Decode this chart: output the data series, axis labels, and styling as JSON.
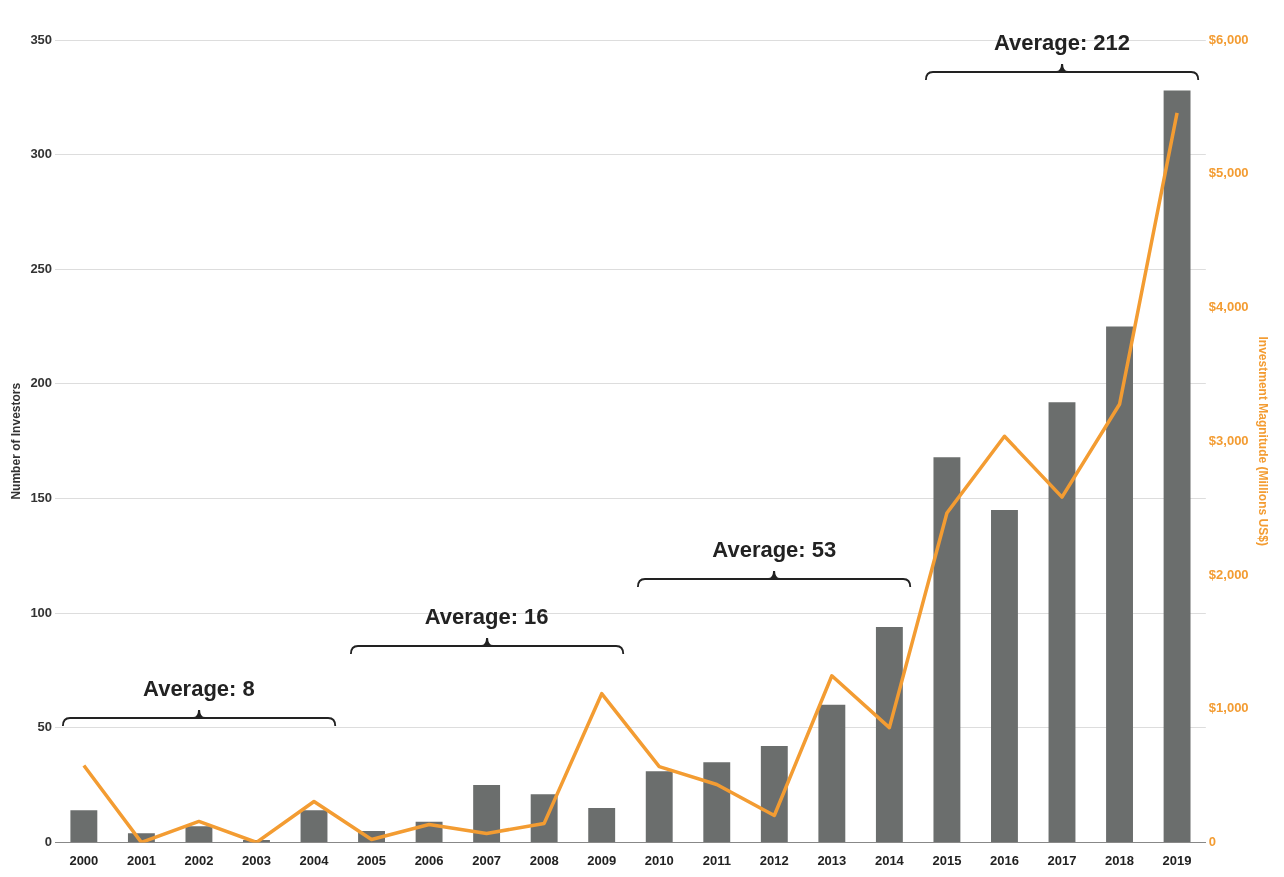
{
  "chart_data": {
    "type": "bar",
    "categories": [
      "2000",
      "2001",
      "2002",
      "2003",
      "2004",
      "2005",
      "2006",
      "2007",
      "2008",
      "2009",
      "2010",
      "2011",
      "2012",
      "2013",
      "2014",
      "2015",
      "2016",
      "2017",
      "2018",
      "2019"
    ],
    "series": [
      {
        "color": "#6b6e6d",
        "values": [
          14,
          4,
          7,
          1,
          14,
          5,
          9,
          25,
          21,
          15,
          31,
          35,
          42,
          60,
          94,
          168,
          145,
          192,
          225,
          328
        ]
      },
      {
        "type": "line",
        "axis": "y2",
        "color": "#f39c32",
        "values": [
          575,
          0,
          157,
          0,
          306,
          22,
          134,
          67,
          142,
          1112,
          567,
          433,
          201,
          1246,
          858,
          2463,
          3037,
          2582,
          3276,
          5455
        ]
      }
    ],
    "ylabel": "Number of Investors",
    "y2label": "Investment Magnitude (Millions US$)",
    "ylim": [
      0,
      350
    ],
    "yticks": [
      0,
      50,
      100,
      150,
      200,
      250,
      300,
      350
    ],
    "y2lim": [
      0,
      6000
    ],
    "y2ticks": [
      0,
      {
        "value": 1000,
        "label": "$1,000"
      },
      {
        "value": 2000,
        "label": "$2,000"
      },
      {
        "value": 3000,
        "label": "$3,000"
      },
      {
        "value": 4000,
        "label": "$4,000"
      },
      {
        "value": 5000,
        "label": "$5,000"
      },
      {
        "value": 6000,
        "label": "$6,000"
      }
    ],
    "grid": "y",
    "legend": false,
    "marker": "none",
    "line_style": "solid",
    "annotations": [
      "Average: 8",
      "Average: 16",
      "Average: 53",
      "Average: 212"
    ]
  }
}
